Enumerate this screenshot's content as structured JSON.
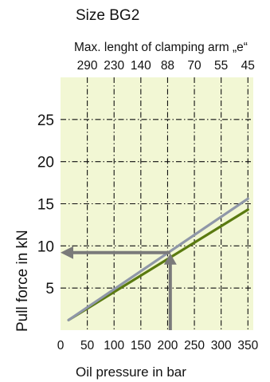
{
  "chart_data": {
    "type": "line",
    "title": "Size BG2",
    "xlabel": "Oil pressure in bar",
    "ylabel": "Pull force in kN",
    "top_axis_label": "Max. lenght of clamping arm „e“",
    "top_ticks": [
      "290",
      "230",
      "140",
      "88",
      "70",
      "55",
      "45"
    ],
    "x_ticks": [
      0,
      50,
      100,
      150,
      200,
      250,
      300,
      350
    ],
    "y_ticks": [
      5,
      10,
      15,
      20,
      25
    ],
    "xlim": [
      0,
      360
    ],
    "ylim": [
      0,
      30
    ],
    "grid": true,
    "plot_bg": "#f2f7d4",
    "series": [
      {
        "color": "#5a7a10",
        "points": [
          [
            15,
            1.2
          ],
          [
            350,
            14.3
          ]
        ]
      },
      {
        "color": "#8f97a8",
        "points": [
          [
            15,
            1.2
          ],
          [
            350,
            15.6
          ]
        ]
      }
    ],
    "annotation": {
      "color": "#7a7a7a",
      "from_x": 205,
      "to_y": 9.2,
      "end_x": 0
    }
  }
}
